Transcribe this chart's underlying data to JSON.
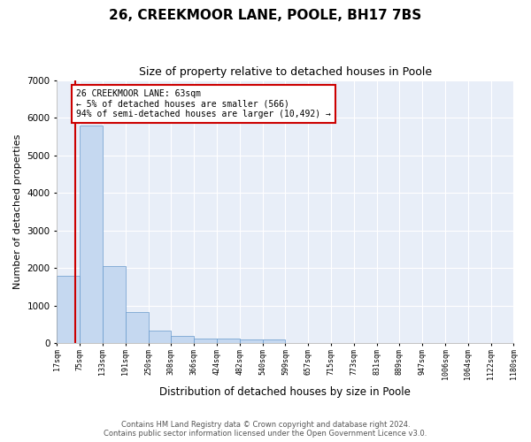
{
  "title": "26, CREEKMOOR LANE, POOLE, BH17 7BS",
  "subtitle": "Size of property relative to detached houses in Poole",
  "xlabel": "Distribution of detached houses by size in Poole",
  "ylabel": "Number of detached properties",
  "bar_color": "#c5d8f0",
  "bar_edge_color": "#6699cc",
  "plot_bg_color": "#e8eef8",
  "bins": [
    "17sqm",
    "75sqm",
    "133sqm",
    "191sqm",
    "250sqm",
    "308sqm",
    "366sqm",
    "424sqm",
    "482sqm",
    "540sqm",
    "599sqm",
    "657sqm",
    "715sqm",
    "773sqm",
    "831sqm",
    "889sqm",
    "947sqm",
    "1006sqm",
    "1064sqm",
    "1122sqm",
    "1180sqm"
  ],
  "bin_edges": [
    0,
    1,
    2,
    3,
    4,
    5,
    6,
    7,
    8,
    9,
    10,
    11,
    12,
    13,
    14,
    15,
    16,
    17,
    18,
    19,
    20
  ],
  "values": [
    1790,
    5780,
    2060,
    820,
    340,
    195,
    120,
    110,
    100,
    90,
    0,
    0,
    0,
    0,
    0,
    0,
    0,
    0,
    0,
    0
  ],
  "ylim": [
    0,
    7000
  ],
  "yticks": [
    0,
    1000,
    2000,
    3000,
    4000,
    5000,
    6000,
    7000
  ],
  "property_bin": 0.5,
  "annotation_text_line1": "26 CREEKMOOR LANE: 63sqm",
  "annotation_text_line2": "← 5% of detached houses are smaller (566)",
  "annotation_text_line3": "94% of semi-detached houses are larger (10,492) →",
  "vline_color": "#cc0000",
  "annotation_box_edge_color": "#cc0000",
  "footer_line1": "Contains HM Land Registry data © Crown copyright and database right 2024.",
  "footer_line2": "Contains public sector information licensed under the Open Government Licence v3.0."
}
